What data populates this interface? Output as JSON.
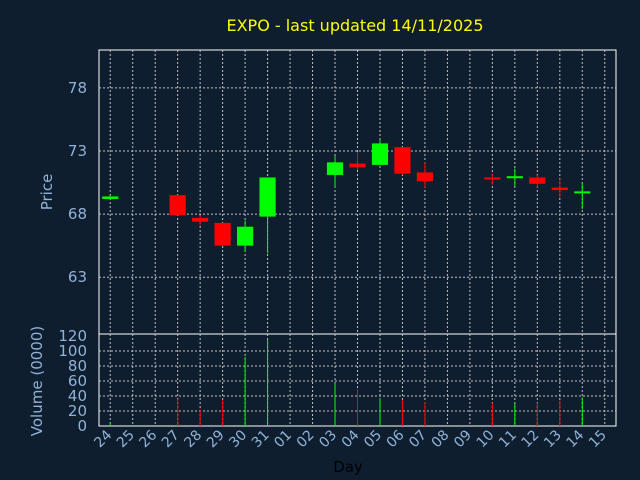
{
  "chart_data": {
    "type": "candlestick",
    "title": "EXPO - last updated 14/11/2025",
    "xlabel": "Day",
    "price_axis": {
      "ylabel": "Price",
      "ylim": [
        58.5,
        81
      ],
      "ticks": [
        63,
        68,
        73,
        78
      ]
    },
    "volume_axis": {
      "ylabel": "Volume (0000)",
      "ylim": [
        0,
        120
      ],
      "ticks": [
        0,
        20,
        40,
        60,
        80,
        100,
        120
      ]
    },
    "grid": true,
    "colors": {
      "up": "#00ff00",
      "down": "#ff0000",
      "background": "#0f1e2e",
      "title": "#ffff00",
      "axis_text": "#8fb3d9"
    },
    "categories": [
      "24",
      "25",
      "26",
      "27",
      "28",
      "29",
      "30",
      "31",
      "01",
      "02",
      "03",
      "04",
      "05",
      "06",
      "07",
      "08",
      "09",
      "10",
      "11",
      "12",
      "13",
      "14",
      "15"
    ],
    "candles": [
      {
        "day": "24",
        "open": 69.2,
        "close": 69.4,
        "high": 69.4,
        "low": 69.2,
        "volume": 3
      },
      {
        "day": "25",
        "open": null,
        "close": null,
        "high": null,
        "low": null,
        "volume": 0
      },
      {
        "day": "26",
        "open": null,
        "close": null,
        "high": null,
        "low": null,
        "volume": 0
      },
      {
        "day": "27",
        "open": 69.5,
        "close": 67.9,
        "high": 69.5,
        "low": 67.9,
        "volume": 36
      },
      {
        "day": "28",
        "open": 67.7,
        "close": 67.4,
        "high": 67.9,
        "low": 67.1,
        "volume": 22
      },
      {
        "day": "29",
        "open": 67.3,
        "close": 65.5,
        "high": 67.3,
        "low": 65.5,
        "volume": 35
      },
      {
        "day": "30",
        "open": 65.5,
        "close": 67.0,
        "high": 67.5,
        "low": 65.0,
        "volume": 92
      },
      {
        "day": "31",
        "open": 67.8,
        "close": 70.9,
        "high": 70.9,
        "low": 64.9,
        "volume": 115
      },
      {
        "day": "01",
        "open": null,
        "close": null,
        "high": null,
        "low": null,
        "volume": 0
      },
      {
        "day": "02",
        "open": null,
        "close": null,
        "high": null,
        "low": null,
        "volume": 0
      },
      {
        "day": "03",
        "open": 71.1,
        "close": 72.1,
        "high": 72.6,
        "low": 70.1,
        "volume": 57
      },
      {
        "day": "04",
        "open": 72.0,
        "close": 71.7,
        "high": 72.9,
        "low": 71.5,
        "volume": 49
      },
      {
        "day": "05",
        "open": 71.9,
        "close": 73.6,
        "high": 73.9,
        "low": 71.9,
        "volume": 37
      },
      {
        "day": "06",
        "open": 73.3,
        "close": 71.2,
        "high": 73.3,
        "low": 71.1,
        "volume": 35
      },
      {
        "day": "07",
        "open": 71.3,
        "close": 70.6,
        "high": 72.1,
        "low": 70.1,
        "volume": 32
      },
      {
        "day": "08",
        "open": null,
        "close": null,
        "high": null,
        "low": null,
        "volume": 0
      },
      {
        "day": "09",
        "open": null,
        "close": null,
        "high": null,
        "low": null,
        "volume": 0
      },
      {
        "day": "10",
        "open": 70.9,
        "close": 70.8,
        "high": 71.2,
        "low": 70.3,
        "volume": 31
      },
      {
        "day": "11",
        "open": 70.9,
        "close": 71.0,
        "high": 71.6,
        "low": 70.2,
        "volume": 31
      },
      {
        "day": "12",
        "open": 70.9,
        "close": 70.4,
        "high": 71.1,
        "low": 70.1,
        "volume": 31
      },
      {
        "day": "13",
        "open": 70.1,
        "close": 69.9,
        "high": 70.8,
        "low": 69.3,
        "volume": 34
      },
      {
        "day": "14",
        "open": 69.7,
        "close": 69.8,
        "high": 70.4,
        "low": 68.4,
        "volume": 38
      },
      {
        "day": "15",
        "open": null,
        "close": null,
        "high": null,
        "low": null,
        "volume": 0
      }
    ]
  }
}
